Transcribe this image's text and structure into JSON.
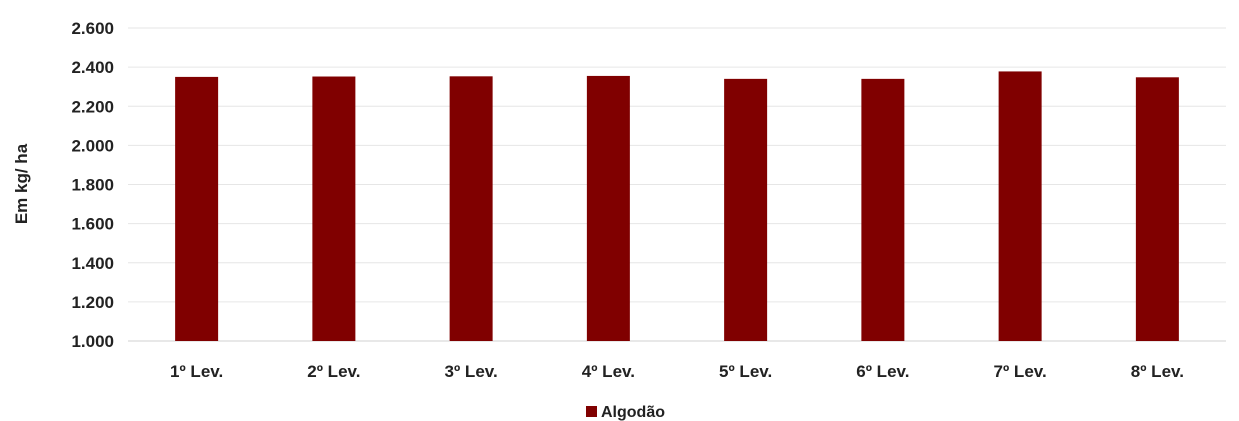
{
  "chart_data": {
    "type": "bar",
    "ylabel": "Em kg/ ha",
    "ylim": [
      1000,
      2600
    ],
    "yticks": [
      1000,
      1200,
      1400,
      1600,
      1800,
      2000,
      2200,
      2400,
      2600
    ],
    "ytick_labels": [
      "1.000",
      "1.200",
      "1.400",
      "1.600",
      "1.800",
      "2.000",
      "2.200",
      "2.400",
      "2.600"
    ],
    "categories": [
      "1º Lev.",
      "2º Lev.",
      "3º Lev.",
      "4º Lev.",
      "5º Lev.",
      "6º Lev.",
      "7º Lev.",
      "8º Lev."
    ],
    "series": [
      {
        "name": "Algodão",
        "color": "#800000",
        "values": [
          2350,
          2352,
          2353,
          2355,
          2340,
          2340,
          2378,
          2348
        ]
      }
    ],
    "grid": true,
    "legend": "bottom-center"
  }
}
